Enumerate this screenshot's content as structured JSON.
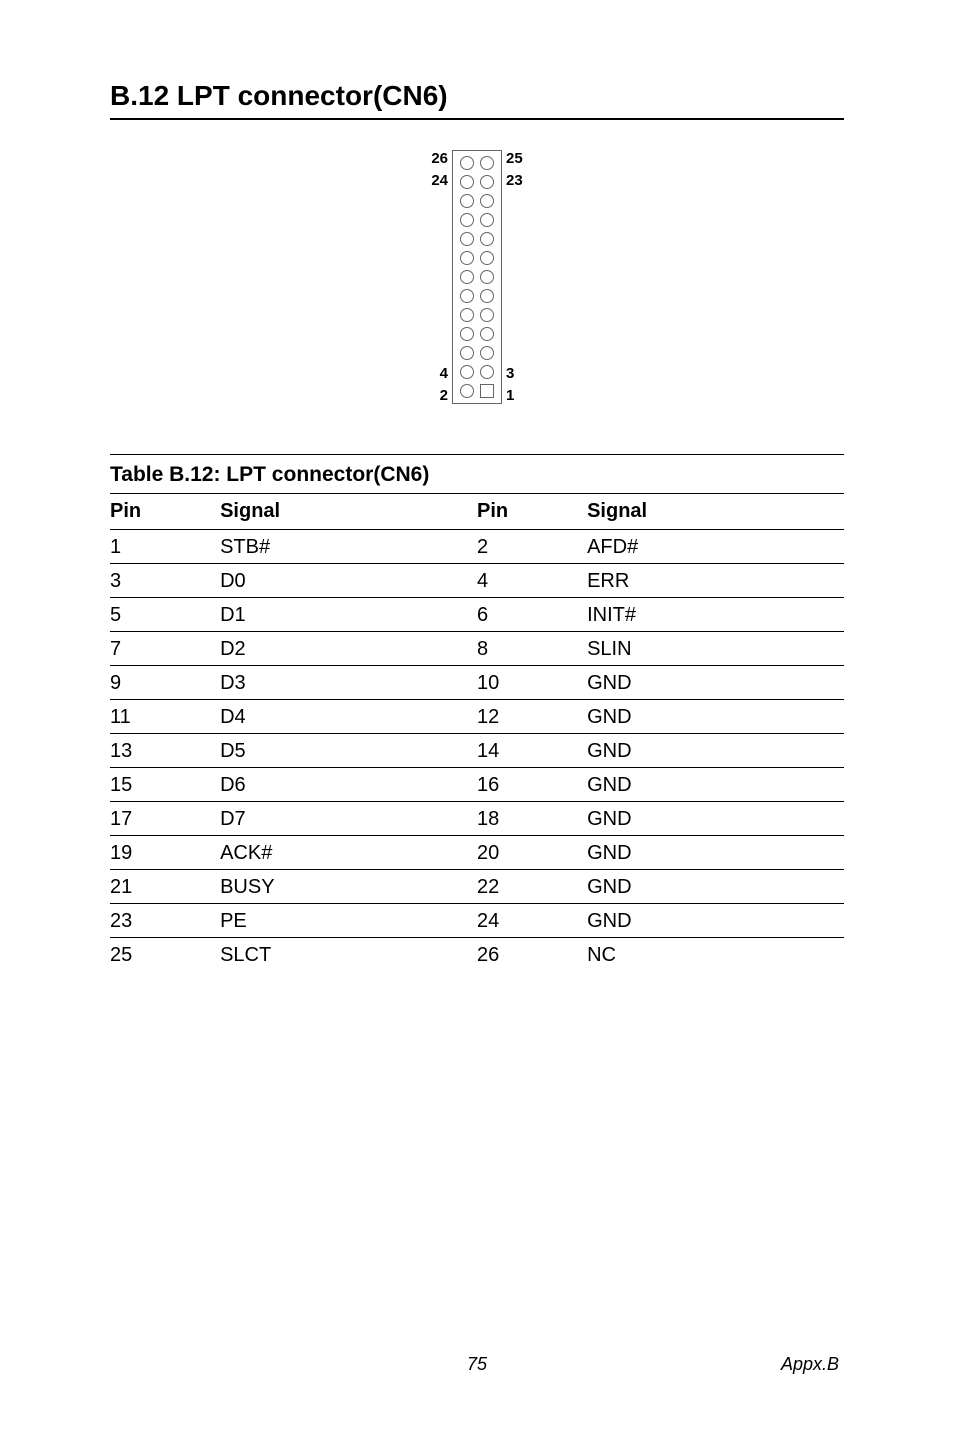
{
  "heading": "B.12 LPT connector(CN6)",
  "connector": {
    "labels": {
      "tl": "26",
      "tl2": "24",
      "tr": "25",
      "tr2": "23",
      "bl": "4",
      "bl2": "2",
      "br": "3",
      "br2": "1"
    },
    "rows": 13,
    "border_color": "#666666",
    "pin_border_color": "#666666"
  },
  "table": {
    "caption": "Table B.12: LPT connector(CN6)",
    "headers": [
      "Pin",
      "Signal",
      "Pin",
      "Signal"
    ],
    "rows": [
      [
        "1",
        "STB#",
        "2",
        "AFD#"
      ],
      [
        "3",
        "D0",
        "4",
        "ERR"
      ],
      [
        "5",
        "D1",
        "6",
        "INIT#"
      ],
      [
        "7",
        "D2",
        "8",
        "SLIN"
      ],
      [
        "9",
        "D3",
        "10",
        "GND"
      ],
      [
        "11",
        "D4",
        "12",
        "GND"
      ],
      [
        "13",
        "D5",
        "14",
        "GND"
      ],
      [
        "15",
        "D6",
        "16",
        "GND"
      ],
      [
        "17",
        "D7",
        "18",
        "GND"
      ],
      [
        "19",
        "ACK#",
        "20",
        "GND"
      ],
      [
        "21",
        "BUSY",
        "22",
        "GND"
      ],
      [
        "23",
        "PE",
        "24",
        "GND"
      ],
      [
        "25",
        "SLCT",
        "26",
        "NC"
      ]
    ],
    "caption_fontsize": 21,
    "body_fontsize": 20
  },
  "footer": {
    "page": "75",
    "section": "Appx.B"
  },
  "colors": {
    "text": "#000000",
    "bg": "#ffffff",
    "rule": "#000000"
  }
}
